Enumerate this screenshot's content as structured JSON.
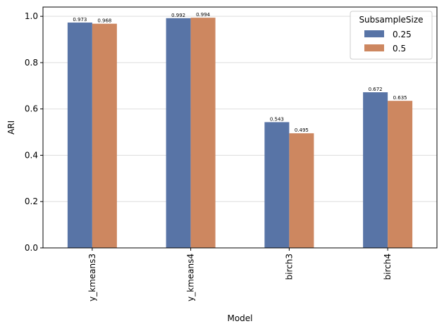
{
  "chart_data": {
    "type": "bar",
    "xlabel": "Model",
    "ylabel": "ARI",
    "ylim": [
      0,
      1.04
    ],
    "yticks": [
      0.0,
      0.2,
      0.4,
      0.6,
      0.8,
      1.0
    ],
    "ytick_labels": [
      "0.0",
      "0.2",
      "0.4",
      "0.6",
      "0.8",
      "1.0"
    ],
    "categories": [
      "y_kmeans3",
      "y_kmeans4",
      "birch3",
      "birch4"
    ],
    "grid": "horizontal",
    "legend": {
      "title": "SubsampleSize",
      "placement": "top-right"
    },
    "series": [
      {
        "name": "0.25",
        "color": "#5874a6",
        "values": [
          0.973,
          0.992,
          0.543,
          0.672
        ],
        "labels": [
          "0.973",
          "0.992",
          "0.543",
          "0.672"
        ]
      },
      {
        "name": "0.5",
        "color": "#cd8760",
        "values": [
          0.968,
          0.994,
          0.495,
          0.635
        ],
        "labels": [
          "0.968",
          "0.994",
          "0.495",
          "0.635"
        ]
      }
    ]
  }
}
